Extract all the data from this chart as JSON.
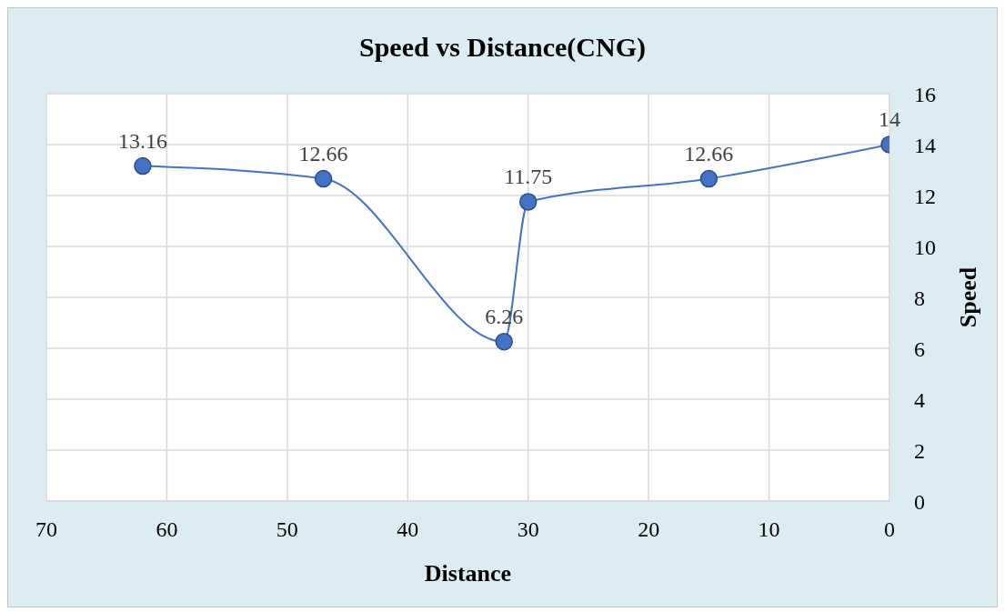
{
  "chart_data": {
    "type": "line",
    "title": "Speed vs Distance(CNG)",
    "xlabel": "Distance",
    "ylabel": "Speed",
    "x": [
      62,
      47,
      32,
      30,
      15,
      0
    ],
    "values": [
      13.16,
      12.66,
      6.26,
      11.75,
      12.66,
      14
    ],
    "color": "#4472c4",
    "xlim": [
      70,
      0
    ],
    "xticks": [
      70,
      60,
      50,
      40,
      30,
      20,
      10,
      0
    ],
    "ylim": [
      0,
      16
    ],
    "yticks": [
      0,
      2,
      4,
      6,
      8,
      10,
      12,
      14,
      16
    ],
    "grid": true,
    "marker": "circle",
    "line_style": "solid",
    "data_labels": true
  }
}
